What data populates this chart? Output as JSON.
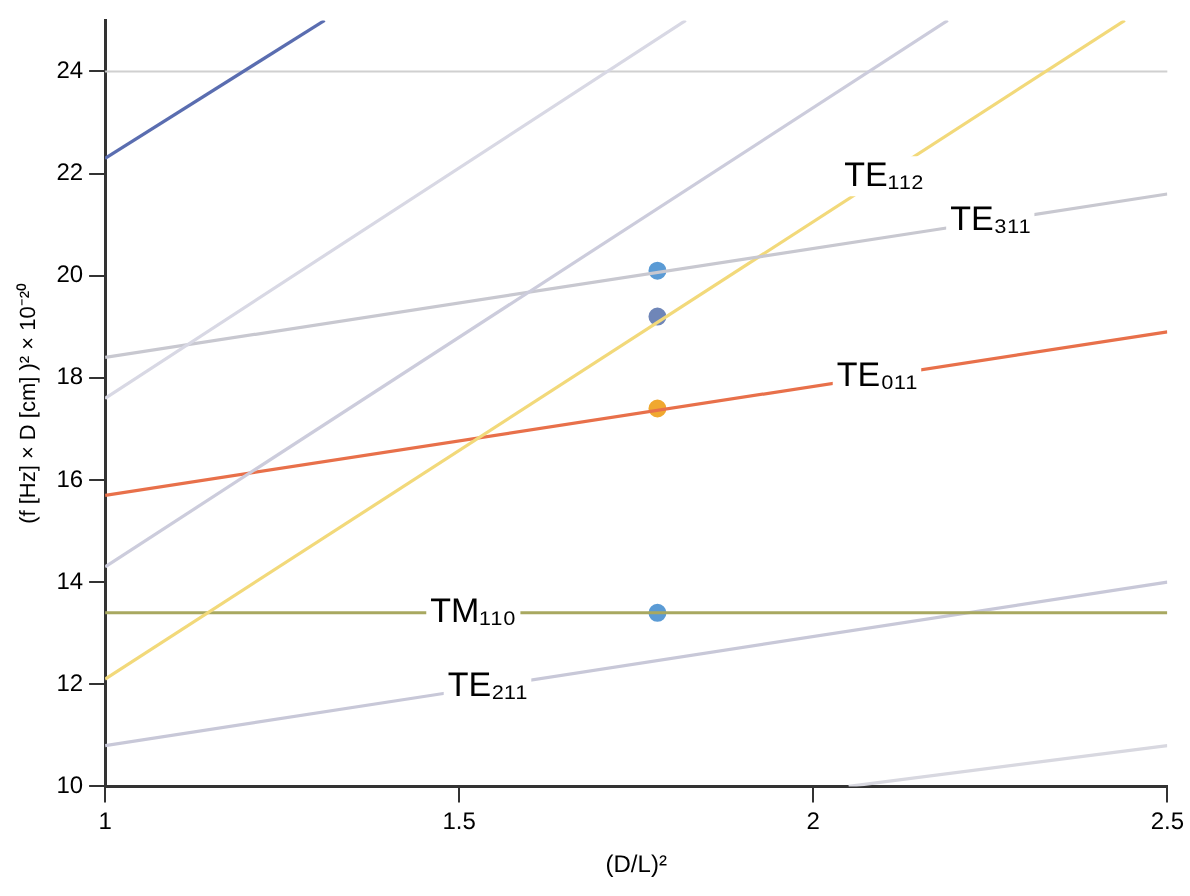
{
  "chart_data": {
    "type": "line",
    "xlabel": "(D/L)²",
    "ylabel": "(f [Hz] × D [cm] )² × 10⁻²⁰",
    "xlim": [
      1,
      2.5
    ],
    "xticks": [
      1,
      1.5,
      2,
      2.5
    ],
    "ylim": [
      10,
      25
    ],
    "yticks": [
      10,
      12,
      14,
      16,
      18,
      20,
      22,
      24
    ],
    "grid": false,
    "legend": false,
    "marker": "none",
    "line_style": "solid",
    "ref_lines": [
      {
        "axis": "y",
        "value": 24,
        "color": "#d0d0d0"
      }
    ],
    "series": [
      {
        "color": "#5a6db0",
        "x": [
          1,
          1.31
        ],
        "values": [
          22.3,
          25
        ]
      },
      {
        "color": "#d8d8e4",
        "x": [
          1,
          1.82
        ],
        "values": [
          17.6,
          25
        ]
      },
      {
        "color": "#ccccdc",
        "x": [
          1,
          2.19
        ],
        "values": [
          14.3,
          25
        ]
      },
      {
        "color": "#c8c8d0",
        "x": [
          1,
          2.5
        ],
        "values": [
          18.4,
          21.6
        ]
      },
      {
        "color": "#f2d97a",
        "x": [
          1,
          2.44
        ],
        "values": [
          12.1,
          25
        ]
      },
      {
        "color": "#e8704a",
        "x": [
          1,
          2.5
        ],
        "values": [
          15.7,
          18.9
        ]
      },
      {
        "color": "#a8a860",
        "x": [
          1,
          2.5
        ],
        "values": [
          13.4,
          13.4
        ]
      },
      {
        "color": "#c8c8d8",
        "x": [
          1,
          2.5
        ],
        "values": [
          10.8,
          14.0
        ]
      },
      {
        "color": "#d8d8e0",
        "x": [
          2.05,
          2.5
        ],
        "values": [
          10,
          10.8
        ]
      },
      {
        "type": "scatter",
        "marker": "circle",
        "x": [
          1.78,
          1.78,
          1.78,
          1.78
        ],
        "values": [
          20.1,
          19.2,
          17.4,
          13.4
        ],
        "colors": [
          "#5b9bd5",
          "#6f86b8",
          "#f0a830",
          "#5b9bd5"
        ]
      }
    ],
    "annotations": [
      {
        "text": "TE₁₁₂",
        "x": 2.1,
        "y": 21.95
      },
      {
        "text": "TE₃₁₁",
        "x": 2.25,
        "y": 21.07
      },
      {
        "text": "TE₀₁₁",
        "x": 2.09,
        "y": 18.03
      },
      {
        "text": "TM₁₁₀",
        "x": 1.52,
        "y": 13.4
      },
      {
        "text": "TE₂₁₁",
        "x": 1.54,
        "y": 11.95
      }
    ]
  }
}
